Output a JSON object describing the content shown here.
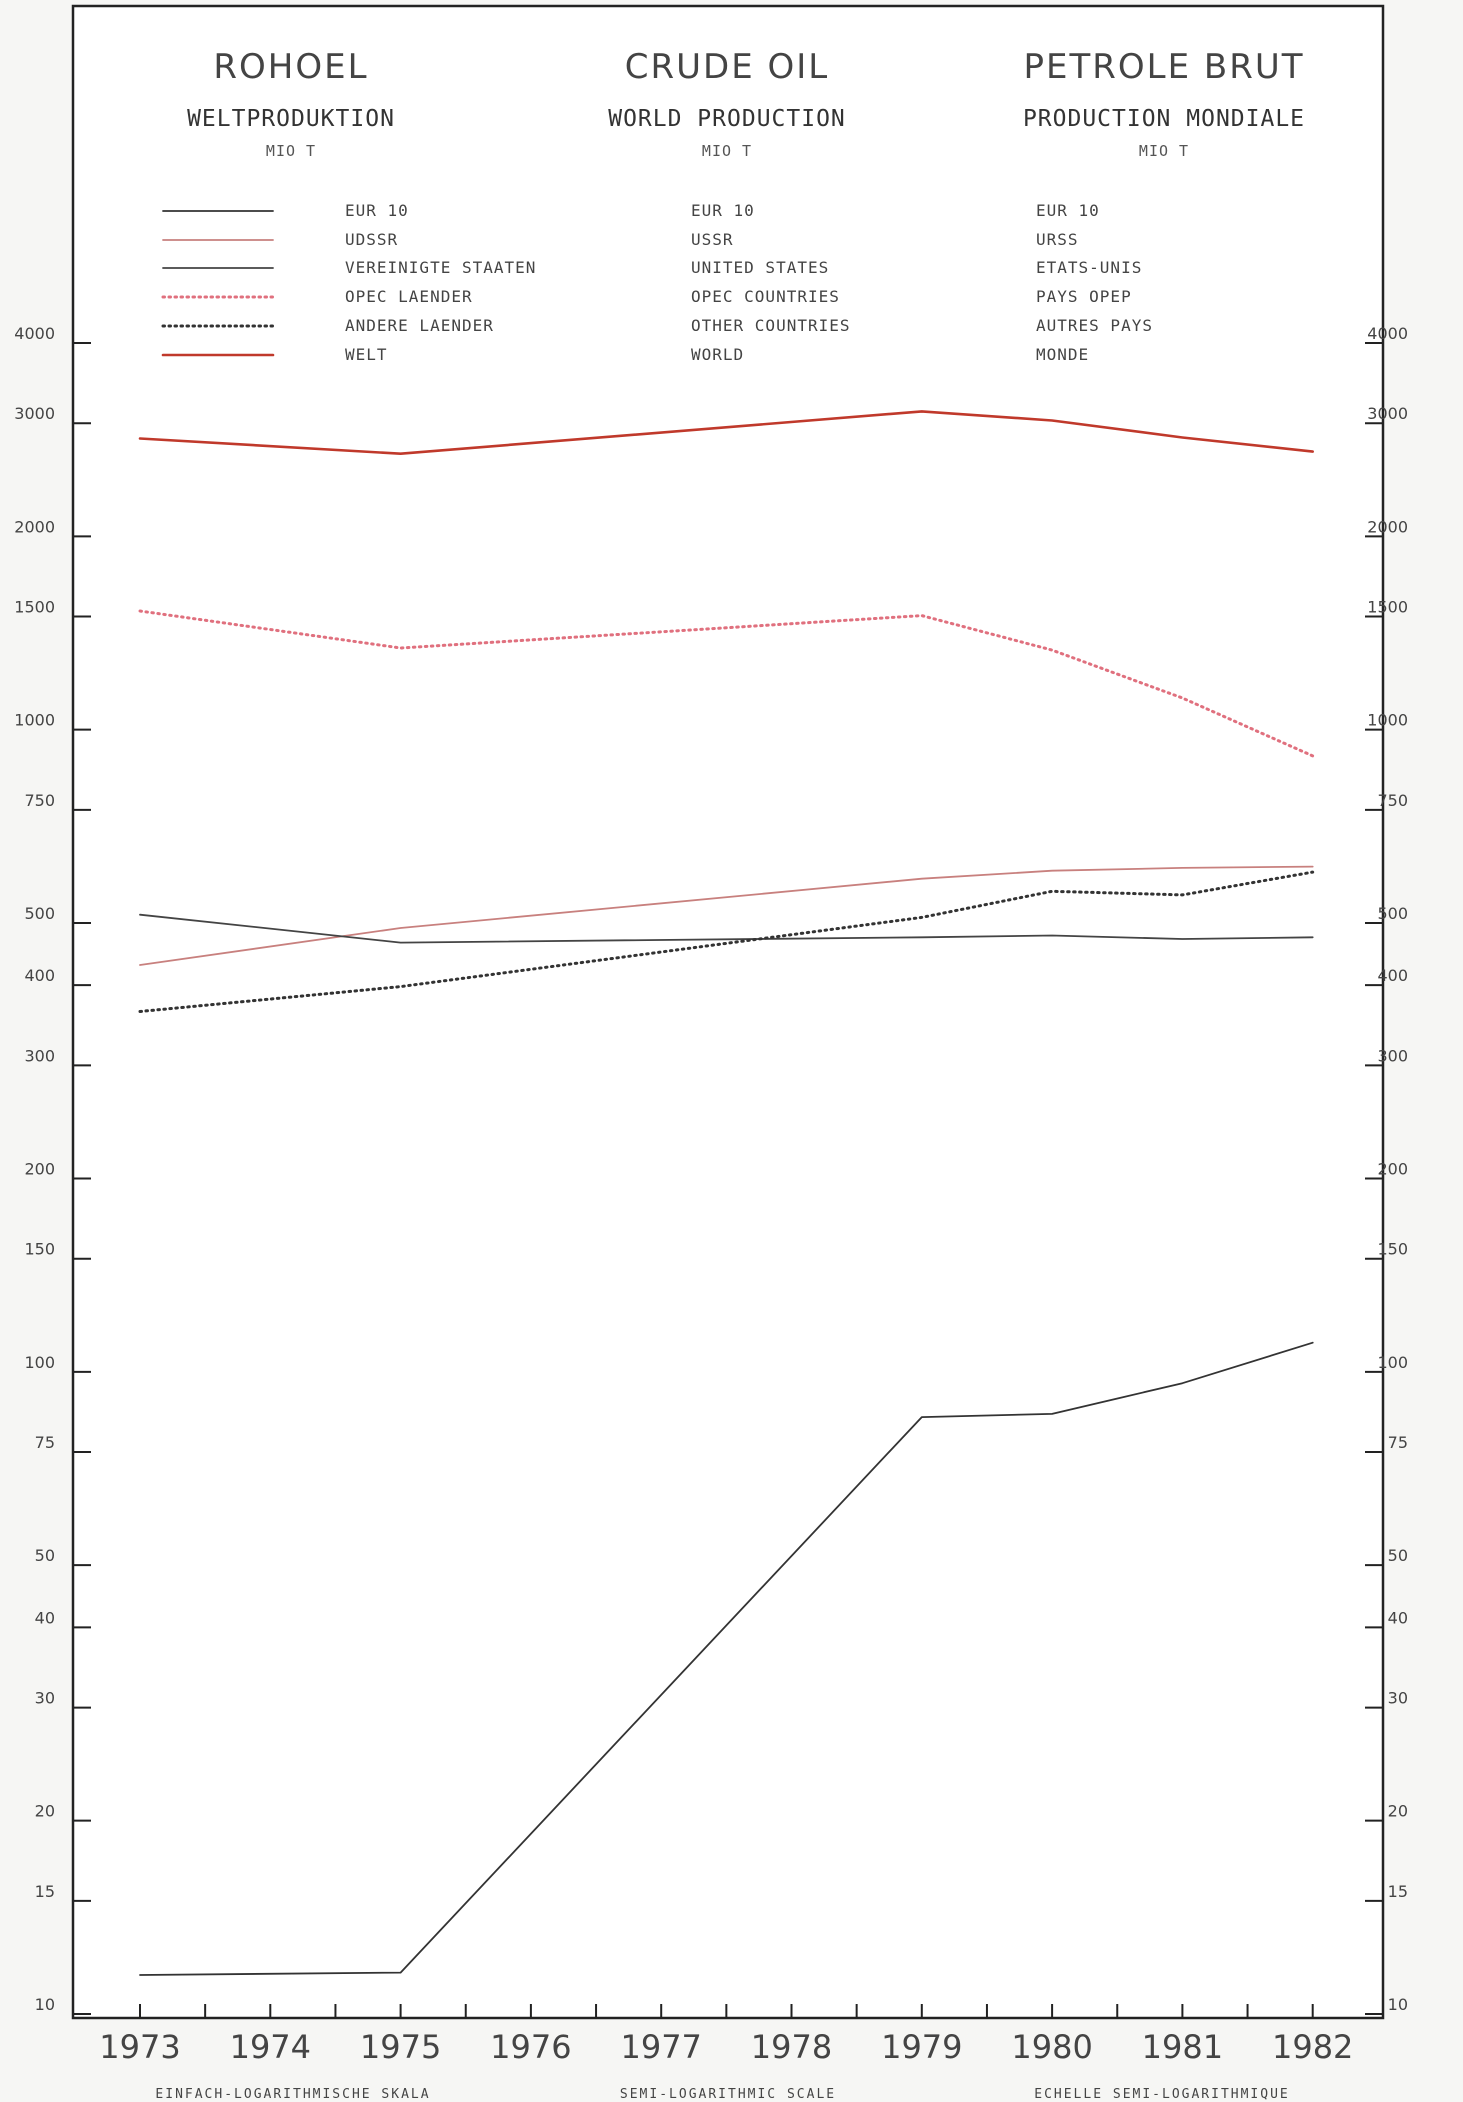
{
  "header": {
    "titles": [
      "ROHOEL",
      "CRUDE OIL",
      "PETROLE BRUT"
    ],
    "subtitles": [
      "WELTPRODUKTION",
      "WORLD PRODUCTION",
      "PRODUCTION MONDIALE"
    ],
    "units": [
      "MIO T",
      "MIO T",
      "MIO T"
    ]
  },
  "legend": {
    "de": [
      "EUR 10",
      "UDSSR",
      "VEREINIGTE STAATEN",
      "OPEC LAENDER",
      "ANDERE LAENDER",
      "WELT"
    ],
    "en": [
      "EUR 10",
      "USSR",
      "UNITED STATES",
      "OPEC COUNTRIES",
      "OTHER COUNTRIES",
      "WORLD"
    ],
    "fr": [
      "EUR 10",
      "URSS",
      "ETATS-UNIS",
      "PAYS OPEP",
      "AUTRES PAYS",
      "MONDE"
    ]
  },
  "footer": [
    "EINFACH-LOGARITHMISCHE SKALA",
    "SEMI-LOGARITHMIC SCALE",
    "ECHELLE SEMI-LOGARITHMIQUE"
  ],
  "chart_data": {
    "type": "line",
    "yscale": "log",
    "ylim": [
      10,
      4000
    ],
    "yticks": [
      10,
      15,
      20,
      30,
      40,
      50,
      75,
      100,
      150,
      200,
      300,
      400,
      500,
      750,
      1000,
      1500,
      2000,
      3000,
      4000
    ],
    "xticks": [
      "1973",
      "1974",
      "1975",
      "1976",
      "1977",
      "1978",
      "1979",
      "1980",
      "1981",
      "1982"
    ],
    "grid": false,
    "series": [
      {
        "name": "EUR 10",
        "color": "#333333",
        "style": "solid",
        "points": [
          [
            1973,
            11.5
          ],
          [
            1975,
            11.6
          ],
          [
            1979,
            85
          ],
          [
            1980,
            86
          ],
          [
            1981,
            96
          ],
          [
            1982,
            111
          ]
        ]
      },
      {
        "name": "UDSSR",
        "color": "#c8807e",
        "style": "solid",
        "points": [
          [
            1973,
            430
          ],
          [
            1975,
            491
          ],
          [
            1979,
            586
          ],
          [
            1980,
            603
          ],
          [
            1981,
            609
          ],
          [
            1982,
            612
          ]
        ]
      },
      {
        "name": "VEREINIGTE STAATEN",
        "color": "#444444",
        "style": "solid",
        "points": [
          [
            1973,
            515
          ],
          [
            1975,
            466
          ],
          [
            1979,
            475
          ],
          [
            1980,
            478
          ],
          [
            1981,
            472
          ],
          [
            1982,
            475
          ]
        ]
      },
      {
        "name": "OPEC LAENDER",
        "color": "#e0707e",
        "style": "dotted",
        "points": [
          [
            1973,
            1530
          ],
          [
            1975,
            1340
          ],
          [
            1979,
            1505
          ],
          [
            1980,
            1330
          ],
          [
            1981,
            1120
          ],
          [
            1982,
            910
          ]
        ]
      },
      {
        "name": "ANDERE LAENDER",
        "color": "#333333",
        "style": "dotted",
        "points": [
          [
            1973,
            364
          ],
          [
            1975,
            398
          ],
          [
            1979,
            510
          ],
          [
            1980,
            560
          ],
          [
            1981,
            553
          ],
          [
            1982,
            600
          ]
        ]
      },
      {
        "name": "WELT",
        "color": "#c0392b",
        "style": "solid",
        "points": [
          [
            1973,
            2840
          ],
          [
            1975,
            2690
          ],
          [
            1979,
            3130
          ],
          [
            1980,
            3030
          ],
          [
            1981,
            2850
          ],
          [
            1982,
            2710
          ]
        ]
      }
    ]
  }
}
